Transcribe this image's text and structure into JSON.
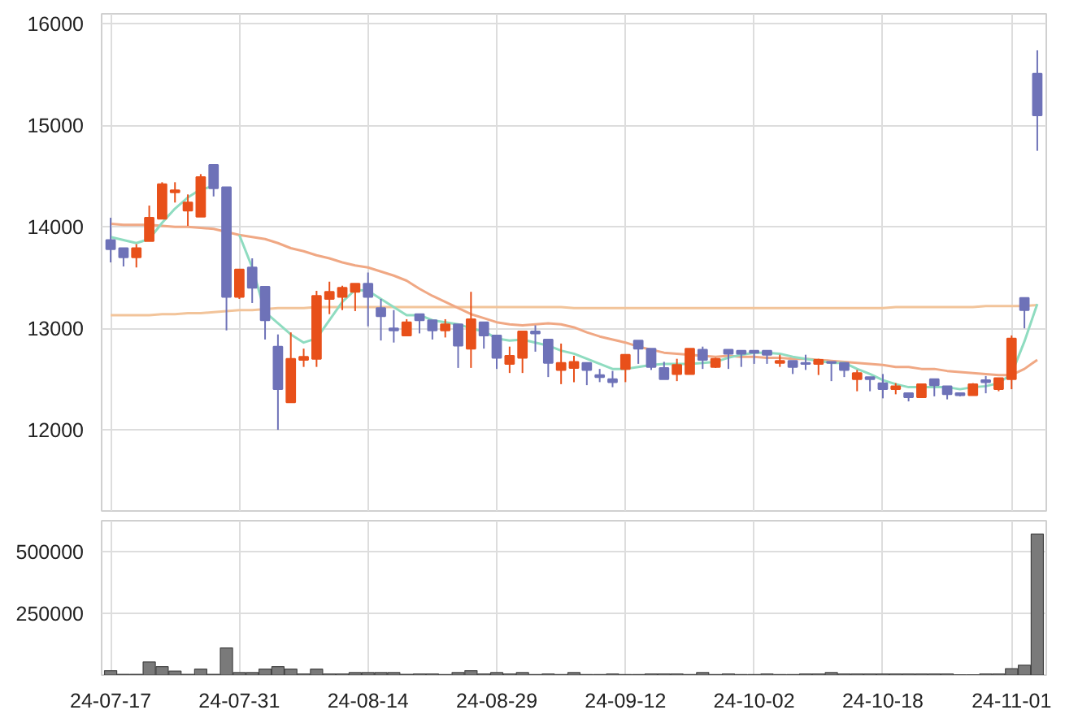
{
  "chart_data": [
    {
      "type": "candlestick",
      "tick_labels": "y",
      "grid": true,
      "ylim": [
        11200,
        16100
      ],
      "yticks": [
        12000,
        13000,
        14000,
        15000,
        16000
      ],
      "categories": [
        null,
        null,
        null,
        null,
        null,
        null,
        null,
        null,
        null,
        null,
        null,
        null,
        null,
        null,
        null,
        null,
        null,
        null,
        null,
        null,
        null,
        null,
        null,
        null,
        null,
        null,
        null,
        null,
        null,
        null,
        null,
        null,
        null,
        null,
        null,
        null,
        null,
        null,
        null,
        null,
        null,
        null,
        null,
        null,
        null,
        null,
        null,
        null,
        null,
        null,
        null,
        null,
        null,
        null,
        null,
        null,
        null,
        null,
        null,
        null,
        null,
        null,
        null,
        null,
        null,
        null,
        null,
        null,
        null,
        null,
        null,
        null,
        null
      ],
      "ohlc": [
        [
          13870,
          14090,
          13650,
          13780
        ],
        [
          13790,
          13790,
          13610,
          13700
        ],
        [
          13700,
          13830,
          13600,
          13790
        ],
        [
          13860,
          14210,
          13860,
          14090
        ],
        [
          14080,
          14440,
          14080,
          14420
        ],
        [
          14340,
          14440,
          14240,
          14360
        ],
        [
          14160,
          14320,
          14010,
          14240
        ],
        [
          14100,
          14520,
          14100,
          14490
        ],
        [
          14610,
          14610,
          14300,
          14380
        ],
        [
          14390,
          14390,
          12980,
          13310
        ],
        [
          13310,
          13580,
          13290,
          13580
        ],
        [
          13600,
          13690,
          13250,
          13400
        ],
        [
          13410,
          13410,
          12890,
          13080
        ],
        [
          12820,
          12940,
          12000,
          12400
        ],
        [
          12270,
          12960,
          12270,
          12700
        ],
        [
          12690,
          12800,
          12620,
          12720
        ],
        [
          12700,
          13370,
          12620,
          13320
        ],
        [
          13290,
          13460,
          13140,
          13360
        ],
        [
          13310,
          13420,
          13180,
          13400
        ],
        [
          13360,
          13440,
          13170,
          13440
        ],
        [
          13440,
          13550,
          13020,
          13310
        ],
        [
          13200,
          13290,
          12880,
          13120
        ],
        [
          13000,
          13180,
          12860,
          12980
        ],
        [
          12930,
          13090,
          12930,
          13060
        ],
        [
          13140,
          13140,
          12950,
          13080
        ],
        [
          13080,
          13080,
          12890,
          12980
        ],
        [
          12980,
          13090,
          12910,
          13040
        ],
        [
          13040,
          13040,
          12610,
          12830
        ],
        [
          12800,
          13360,
          12610,
          13090
        ],
        [
          13060,
          13060,
          12800,
          12930
        ],
        [
          12930,
          12930,
          12600,
          12710
        ],
        [
          12650,
          12820,
          12560,
          12730
        ],
        [
          12710,
          12970,
          12560,
          12970
        ],
        [
          12970,
          13030,
          12770,
          12950
        ],
        [
          12890,
          12890,
          12520,
          12660
        ],
        [
          12590,
          12850,
          12450,
          12660
        ],
        [
          12610,
          12730,
          12470,
          12670
        ],
        [
          12660,
          12660,
          12440,
          12590
        ],
        [
          12540,
          12600,
          12470,
          12520
        ],
        [
          12500,
          12580,
          12420,
          12470
        ],
        [
          12600,
          12740,
          12470,
          12740
        ],
        [
          12880,
          12880,
          12650,
          12800
        ],
        [
          12800,
          12800,
          12590,
          12620
        ],
        [
          12610,
          12670,
          12500,
          12500
        ],
        [
          12550,
          12700,
          12480,
          12640
        ],
        [
          12550,
          12800,
          12550,
          12800
        ],
        [
          12790,
          12820,
          12600,
          12690
        ],
        [
          12620,
          12710,
          12610,
          12700
        ],
        [
          12790,
          12790,
          12600,
          12750
        ],
        [
          12780,
          12780,
          12620,
          12750
        ],
        [
          12780,
          12780,
          12650,
          12760
        ],
        [
          12780,
          12780,
          12650,
          12740
        ],
        [
          12660,
          12740,
          12620,
          12680
        ],
        [
          12680,
          12680,
          12550,
          12620
        ],
        [
          12660,
          12740,
          12590,
          12650
        ],
        [
          12650,
          12700,
          12540,
          12690
        ],
        [
          12670,
          12670,
          12480,
          12660
        ],
        [
          12660,
          12660,
          12520,
          12590
        ],
        [
          12500,
          12590,
          12380,
          12560
        ],
        [
          12520,
          12520,
          12380,
          12500
        ],
        [
          12460,
          12550,
          12310,
          12400
        ],
        [
          12400,
          12460,
          12350,
          12430
        ],
        [
          12360,
          12360,
          12280,
          12320
        ],
        [
          12320,
          12450,
          12320,
          12450
        ],
        [
          12500,
          12500,
          12330,
          12440
        ],
        [
          12430,
          12430,
          12300,
          12350
        ],
        [
          12360,
          12360,
          12330,
          12340
        ],
        [
          12340,
          12460,
          12340,
          12450
        ],
        [
          12490,
          12530,
          12360,
          12470
        ],
        [
          12400,
          12510,
          12380,
          12510
        ],
        [
          12500,
          12930,
          12400,
          12900
        ],
        [
          13300,
          13300,
          13000,
          13180
        ],
        [
          15510,
          15740,
          14750,
          15100
        ]
      ],
      "colors": [
        "#6e72b8",
        "#6e72b8",
        "#e8501a",
        "#e8501a",
        "#e8501a",
        "#e8501a",
        "#e8501a",
        "#e8501a",
        "#6e72b8",
        "#6e72b8",
        "#e8501a",
        "#6e72b8",
        "#6e72b8",
        "#6e72b8",
        "#e8501a",
        "#e8501a",
        "#e8501a",
        "#e8501a",
        "#e8501a",
        "#e8501a",
        "#6e72b8",
        "#6e72b8",
        "#6e72b8",
        "#e8501a",
        "#6e72b8",
        "#6e72b8",
        "#e8501a",
        "#6e72b8",
        "#e8501a",
        "#6e72b8",
        "#6e72b8",
        "#e8501a",
        "#e8501a",
        "#6e72b8",
        "#6e72b8",
        "#e8501a",
        "#e8501a",
        "#6e72b8",
        "#6e72b8",
        "#6e72b8",
        "#e8501a",
        "#6e72b8",
        "#6e72b8",
        "#6e72b8",
        "#e8501a",
        "#e8501a",
        "#6e72b8",
        "#e8501a",
        "#6e72b8",
        "#6e72b8",
        "#6e72b8",
        "#6e72b8",
        "#e8501a",
        "#6e72b8",
        "#6e72b8",
        "#e8501a",
        "#6e72b8",
        "#6e72b8",
        "#e8501a",
        "#6e72b8",
        "#6e72b8",
        "#e8501a",
        "#6e72b8",
        "#e8501a",
        "#6e72b8",
        "#6e72b8",
        "#6e72b8",
        "#e8501a",
        "#6e72b8",
        "#e8501a",
        "#e8501a",
        "#6e72b8",
        "#6e72b8"
      ],
      "series": [
        {
          "type": "line",
          "color": "#f2c49a",
          "values": [
            13130,
            13130,
            13130,
            13130,
            13140,
            13140,
            13150,
            13150,
            13160,
            13170,
            13180,
            13180,
            13190,
            13200,
            13200,
            13200,
            13210,
            13210,
            13210,
            13210,
            13210,
            13210,
            13210,
            13210,
            13210,
            13210,
            13210,
            13210,
            13210,
            13210,
            13210,
            13210,
            13210,
            13210,
            13210,
            13210,
            13200,
            13200,
            13200,
            13200,
            13200,
            13200,
            13200,
            13200,
            13200,
            13200,
            13200,
            13200,
            13200,
            13200,
            13200,
            13200,
            13200,
            13200,
            13200,
            13200,
            13200,
            13200,
            13200,
            13200,
            13200,
            13210,
            13210,
            13210,
            13210,
            13210,
            13210,
            13210,
            13220,
            13220,
            13220,
            13220,
            13230
          ]
        },
        {
          "type": "line",
          "color": "#f0a884",
          "values": [
            14030,
            14020,
            14020,
            14020,
            14010,
            14000,
            14000,
            13990,
            13980,
            13950,
            13920,
            13900,
            13880,
            13840,
            13790,
            13760,
            13720,
            13690,
            13650,
            13620,
            13600,
            13560,
            13520,
            13470,
            13390,
            13320,
            13260,
            13200,
            13140,
            13100,
            13060,
            13040,
            13030,
            13040,
            13050,
            13040,
            13010,
            12960,
            12920,
            12890,
            12860,
            12820,
            12790,
            12760,
            12750,
            12740,
            12730,
            12720,
            12730,
            12720,
            12720,
            12710,
            12710,
            12700,
            12700,
            12690,
            12680,
            12670,
            12660,
            12650,
            12640,
            12620,
            12620,
            12600,
            12600,
            12580,
            12570,
            12560,
            12550,
            12540,
            12540,
            12600,
            12690
          ]
        },
        {
          "type": "line",
          "color": "#8fdcc0",
          "values": [
            13900,
            13870,
            13840,
            13880,
            14040,
            14180,
            14290,
            14370,
            14400,
            null,
            13920,
            13600,
            13160,
            13050,
            12940,
            12860,
            12900,
            13080,
            13260,
            13380,
            13370,
            13290,
            13210,
            13130,
            13130,
            13080,
            13060,
            13040,
            13000,
            12970,
            12900,
            12880,
            12890,
            12860,
            12830,
            12780,
            12750,
            12700,
            12650,
            12600,
            12600,
            12620,
            12640,
            12650,
            12650,
            12650,
            12660,
            12670,
            12710,
            12740,
            12760,
            12760,
            12750,
            12720,
            12700,
            12680,
            12660,
            12660,
            12600,
            12550,
            12490,
            12450,
            12420,
            12420,
            12420,
            12420,
            12400,
            12420,
            12430,
            12460,
            12550,
            12870,
            13240
          ]
        }
      ]
    },
    {
      "type": "bar",
      "grid": true,
      "color": "#7a7a7a",
      "ylim": [
        0,
        625000
      ],
      "yticks": [
        250000,
        500000
      ],
      "categories": [
        "24-07-17",
        null,
        null,
        null,
        null,
        null,
        null,
        null,
        null,
        null,
        "24-07-31",
        null,
        null,
        null,
        null,
        null,
        null,
        null,
        null,
        null,
        "24-08-14",
        null,
        null,
        null,
        null,
        null,
        null,
        null,
        null,
        null,
        "24-08-29",
        null,
        null,
        null,
        null,
        null,
        null,
        null,
        null,
        null,
        "24-09-12",
        null,
        null,
        null,
        null,
        null,
        null,
        null,
        null,
        null,
        "24-10-02",
        null,
        null,
        null,
        null,
        null,
        null,
        null,
        null,
        null,
        "24-10-18",
        null,
        null,
        null,
        null,
        null,
        null,
        null,
        null,
        null,
        "24-11-01",
        null,
        null
      ],
      "values": [
        18000,
        3000,
        3000,
        53000,
        34000,
        16000,
        3000,
        24000,
        3000,
        110000,
        10000,
        10000,
        24000,
        34000,
        24000,
        5000,
        24000,
        5000,
        5000,
        10000,
        10000,
        10000,
        10000,
        3000,
        5000,
        5000,
        2000,
        10000,
        18000,
        5000,
        10000,
        5000,
        10000,
        2000,
        5000,
        2000,
        10000,
        2000,
        2000,
        5000,
        2000,
        2000,
        5000,
        5000,
        5000,
        2000,
        10000,
        2000,
        5000,
        2000,
        2000,
        5000,
        2000,
        2000,
        5000,
        5000,
        10000,
        5000,
        5000,
        5000,
        5000,
        5000,
        5000,
        5000,
        5000,
        5000,
        1000,
        1000,
        5000,
        5000,
        26000,
        40000,
        571000
      ]
    }
  ]
}
